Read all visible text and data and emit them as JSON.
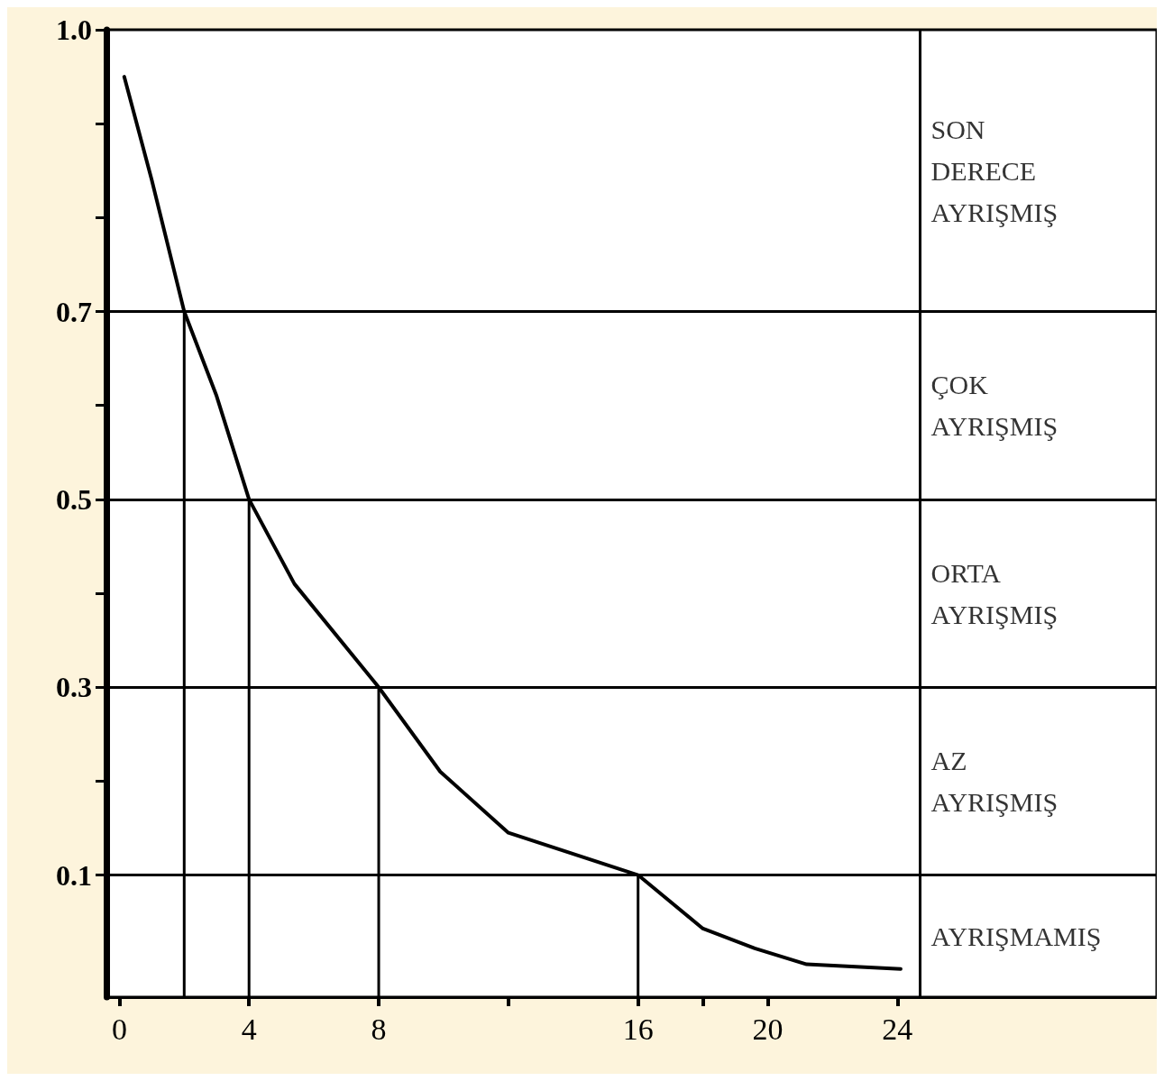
{
  "chart_data": {
    "type": "line",
    "series": [
      {
        "color": "#000000",
        "x": [
          0.15,
          1,
          2,
          3,
          4,
          5.4,
          8,
          9.9,
          12,
          16,
          18,
          19.6,
          21.2,
          24.1
        ],
        "values": [
          0.95,
          0.84,
          0.7,
          0.61,
          0.5,
          0.41,
          0.3,
          0.21,
          0.145,
          0.1,
          0.043,
          0.022,
          0.005,
          0.0
        ]
      },
      {
        "color": "#000000",
        "x": [
          2,
          2
        ],
        "values": [
          -0.03,
          0.7
        ]
      },
      {
        "color": "#000000",
        "x": [
          4,
          4
        ],
        "values": [
          -0.03,
          0.5
        ]
      },
      {
        "color": "#000000",
        "x": [
          8,
          8
        ],
        "values": [
          -0.03,
          0.3
        ]
      },
      {
        "color": "#000000",
        "x": [
          16,
          16
        ],
        "values": [
          -0.03,
          0.1
        ]
      }
    ],
    "xlim": [
      -0.4,
      32
    ],
    "xticks": [
      0,
      4,
      8,
      {
        "value": 12,
        "label": null
      },
      16,
      {
        "value": 18,
        "label": null
      },
      20,
      24
    ],
    "ylim": [
      -0.03,
      1.0
    ],
    "yticks": [
      {
        "value": 0.1,
        "label": "0.1"
      },
      {
        "value": 0.2,
        "label": null
      },
      {
        "value": 0.3,
        "label": "0.3"
      },
      {
        "value": 0.4,
        "label": null
      },
      {
        "value": 0.5,
        "label": "0.5"
      },
      {
        "value": 0.6,
        "label": null
      },
      {
        "value": 0.7,
        "label": "0.7"
      },
      {
        "value": 0.8,
        "label": null
      },
      {
        "value": 0.9,
        "label": null
      },
      {
        "value": 1.0,
        "label": "1.0"
      }
    ],
    "ref_lines": [
      {
        "axis": "y",
        "value": 0.7,
        "color": "#000000"
      },
      {
        "axis": "y",
        "value": 0.5,
        "color": "#000000"
      },
      {
        "axis": "y",
        "value": 0.3,
        "color": "#000000"
      },
      {
        "axis": "y",
        "value": 0.1,
        "color": "#000000"
      },
      {
        "axis": "x",
        "value": 24.7,
        "color": "#000000"
      }
    ],
    "annotations": [
      "SON\nDERECE\nAYRIŞMIŞ",
      "ÇOK\nAYRIŞMIŞ",
      "ORTA\nAYRIŞMIŞ",
      "AZ\nAYRIŞMIŞ",
      "AYRIŞMAMIŞ"
    ],
    "grid": false,
    "marker": "none",
    "line_style": "solid"
  }
}
